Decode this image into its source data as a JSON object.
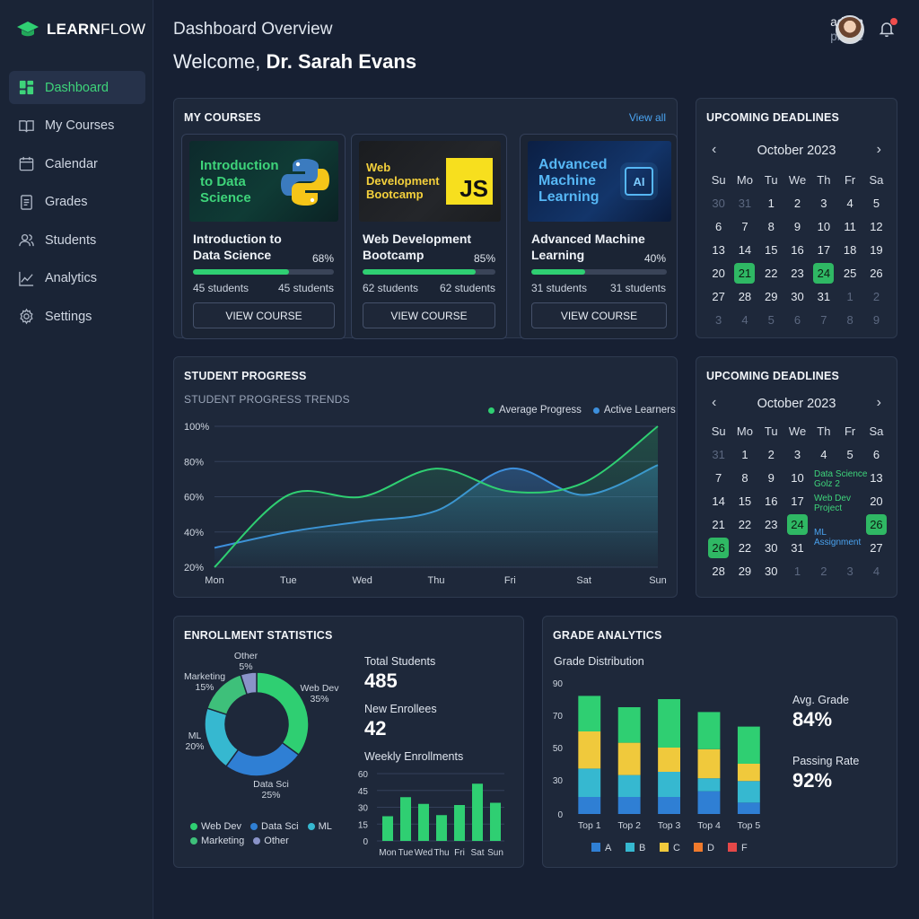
{
  "brand": {
    "name_bold": "LEARN",
    "name_thin": "FLOW",
    "accent": "#2fcf72"
  },
  "sidebar": {
    "items": [
      {
        "label": "Dashboard",
        "icon": "dashboard-icon",
        "active": true
      },
      {
        "label": "My Courses",
        "icon": "book-icon"
      },
      {
        "label": "Calendar",
        "icon": "calendar-icon"
      },
      {
        "label": "Grades",
        "icon": "document-icon"
      },
      {
        "label": "Students",
        "icon": "users-icon"
      },
      {
        "label": "Analytics",
        "icon": "chart-line-icon"
      },
      {
        "label": "Settings",
        "icon": "gear-icon"
      }
    ]
  },
  "header": {
    "title": "Dashboard Overview",
    "welcome_prefix": "Welcome, ",
    "welcome_name": "Dr. Sarah Evans",
    "user_line1": "admin",
    "user_line2": "profile"
  },
  "courses": {
    "title": "MY COURSES",
    "view_all": "View all",
    "items": [
      {
        "thumb_text": "Introduction to Data Science",
        "thumb_logo": "python-logo",
        "title": "Introduction to Data Science",
        "progress": 68,
        "progress_label": "68%",
        "students_left": "45 students",
        "students_right": "45 students",
        "button": "VIEW COURSE"
      },
      {
        "thumb_text": "Web Development Bootcamp",
        "thumb_logo": "js-logo",
        "logo_text": "JS",
        "title": "Web Development Bootcamp",
        "progress": 85,
        "progress_label": "85%",
        "students_left": "62 students",
        "students_right": "62 students",
        "button": "VIEW COURSE"
      },
      {
        "thumb_text": "Advanced Machine Learning",
        "thumb_logo": "ai-chip-logo",
        "logo_text": "AI",
        "title": "Advanced Machine Learning",
        "progress": 40,
        "progress_label": "40%",
        "students_left": "31 students",
        "students_right": "31 students",
        "button": "VIEW COURSE"
      }
    ]
  },
  "deadlines1": {
    "title": "UPCOMING DEADLINES",
    "month": "October 2023",
    "dow": [
      "Su",
      "Mo",
      "Tu",
      "We",
      "Th",
      "Fr",
      "Sa"
    ],
    "days": [
      [
        "30",
        "m"
      ],
      [
        "31",
        "m"
      ],
      [
        "1"
      ],
      [
        "2"
      ],
      [
        "3"
      ],
      [
        "4"
      ],
      [
        "5"
      ],
      [
        "6"
      ],
      [
        "7"
      ],
      [
        "8"
      ],
      [
        "9"
      ],
      [
        "10"
      ],
      [
        "11"
      ],
      [
        "12"
      ],
      [
        "13"
      ],
      [
        "14"
      ],
      [
        "15"
      ],
      [
        "16"
      ],
      [
        "17"
      ],
      [
        "18"
      ],
      [
        "19"
      ],
      [
        "20"
      ],
      [
        "21",
        "h"
      ],
      [
        "22"
      ],
      [
        "23"
      ],
      [
        "24",
        "h"
      ],
      [
        "25"
      ],
      [
        "26"
      ],
      [
        "27"
      ],
      [
        "28"
      ],
      [
        "29"
      ],
      [
        "30"
      ],
      [
        "31"
      ],
      [
        "1",
        "m"
      ],
      [
        "2",
        "m"
      ],
      [
        "3",
        "m"
      ],
      [
        "4",
        "m"
      ],
      [
        "5",
        "m"
      ],
      [
        "6",
        "m"
      ],
      [
        "7",
        "m"
      ],
      [
        "8",
        "m"
      ],
      [
        "9",
        "m"
      ]
    ]
  },
  "deadlines2": {
    "title": "UPCOMING DEADLINES",
    "month": "October 2023",
    "dow": [
      "Su",
      "Mo",
      "Tu",
      "We",
      "Th",
      "Fr",
      "Sa"
    ],
    "days": [
      [
        "31",
        "m"
      ],
      [
        "1"
      ],
      [
        "2"
      ],
      [
        "3"
      ],
      [
        "4"
      ],
      [
        "5"
      ],
      [
        "6"
      ],
      [
        "7"
      ],
      [
        "8"
      ],
      [
        "9"
      ],
      [
        "10"
      ],
      [
        "",
        "e"
      ],
      [
        "",
        "e"
      ],
      [
        "13"
      ],
      [
        "14"
      ],
      [
        "15"
      ],
      [
        "16"
      ],
      [
        "17"
      ],
      [
        "",
        "e"
      ],
      [
        "",
        "e"
      ],
      [
        "20"
      ],
      [
        "21"
      ],
      [
        "22"
      ],
      [
        "23"
      ],
      [
        "24",
        "h"
      ],
      [
        "",
        ""
      ],
      [
        "",
        ""
      ],
      [
        "26",
        "h"
      ],
      [
        "26",
        "h"
      ],
      [
        "22"
      ],
      [
        "30"
      ],
      [
        "31"
      ],
      [
        "",
        "e"
      ],
      [
        "",
        "e"
      ],
      [
        "27"
      ],
      [
        "28"
      ],
      [
        "29"
      ],
      [
        "30"
      ],
      [
        "1",
        "m"
      ],
      [
        "2",
        "m"
      ],
      [
        "3",
        "m"
      ],
      [
        "4",
        "m"
      ]
    ],
    "events": [
      {
        "text": "Data Science Golz 2",
        "color": "green"
      },
      {
        "text": "Web Dev Project",
        "color": "green"
      },
      {
        "text": "ML Assignment",
        "color": "blue"
      }
    ]
  },
  "progress": {
    "title": "STUDENT PROGRESS",
    "subtitle": "STUDENT PROGRESS TRENDS"
  },
  "chart_data": [
    {
      "type": "line",
      "title": "STUDENT PROGRESS TRENDS",
      "x": [
        "Mon",
        "Tue",
        "Wed",
        "Thu",
        "Fri",
        "Sat",
        "Sun"
      ],
      "y_ticks": [
        "100%",
        "80%",
        "60%",
        "40%",
        "20%"
      ],
      "ylim": [
        20,
        100
      ],
      "legend_position": "top-right",
      "series": [
        {
          "name": "Average Progress",
          "color": "#2fcf72",
          "values": [
            20,
            61,
            60,
            76,
            63,
            68,
            100
          ]
        },
        {
          "name": "Active Learners",
          "color": "#3d8fdc",
          "values": [
            31,
            40,
            46,
            52,
            76,
            61,
            78
          ]
        }
      ]
    },
    {
      "type": "pie",
      "title": "ENROLLMENT STATISTICS",
      "slices": [
        {
          "name": "Web Dev",
          "value": 35,
          "label": "35%",
          "color": "#2fcf72"
        },
        {
          "name": "Data Sci",
          "value": 25,
          "label": "25%",
          "color": "#2f7fd4"
        },
        {
          "name": "ML",
          "value": 20,
          "label": "20%",
          "color": "#36b8d0"
        },
        {
          "name": "Marketing",
          "value": 15,
          "label": "15%",
          "color": "#3ec07a"
        },
        {
          "name": "Other",
          "value": 5,
          "label": "5%",
          "color": "#8a93c8"
        }
      ]
    },
    {
      "type": "bar",
      "title": "Weekly Enrollments",
      "categories": [
        "Mon",
        "Tue",
        "Wed",
        "Thu",
        "Fri",
        "Sat",
        "Sun"
      ],
      "values": [
        22,
        39,
        33,
        23,
        32,
        51,
        34
      ],
      "y_ticks": [
        "60",
        "45",
        "30",
        "15",
        "0"
      ],
      "ylim": [
        0,
        60
      ]
    },
    {
      "type": "bar",
      "title": "Grade Distribution",
      "stacked": true,
      "categories": [
        "Top 1",
        "Top 2",
        "Top 3",
        "Top 4",
        "Top 5"
      ],
      "y_ticks": [
        "90",
        "70",
        "50",
        "30",
        "0"
      ],
      "series": [
        {
          "name": "A",
          "color": "#2f7fd4",
          "values": [
            15,
            15,
            15,
            20,
            10
          ]
        },
        {
          "name": "B",
          "color": "#36b8d0",
          "values": [
            22,
            18,
            20,
            11,
            19
          ]
        },
        {
          "name": "C",
          "color": "#f0c93c",
          "values": [
            23,
            20,
            15,
            18,
            11
          ]
        },
        {
          "name": "D",
          "color": "#f07a2c",
          "values": [
            0,
            0,
            0,
            0,
            0
          ]
        },
        {
          "name": "F",
          "color": "#e54848",
          "values": [
            0,
            0,
            0,
            0,
            0
          ]
        },
        {
          "name": "",
          "color": "#2fcf72",
          "values": [
            22,
            22,
            30,
            23,
            23
          ]
        }
      ]
    }
  ],
  "enrollment": {
    "title": "ENROLLMENT STATISTICS",
    "total_label": "Total Students",
    "total_value": "485",
    "new_label": "New Enrollees",
    "new_value": "42",
    "weekly_label": "Weekly Enrollments",
    "legend": [
      "Web Dev",
      "Data Sci",
      "ML",
      "Marketing",
      "Other"
    ]
  },
  "grades": {
    "title": "GRADE ANALYTICS",
    "subtitle": "Grade Distribution",
    "avg_label": "Avg. Grade",
    "avg_value": "84%",
    "pass_label": "Passing Rate",
    "pass_value": "92%"
  }
}
